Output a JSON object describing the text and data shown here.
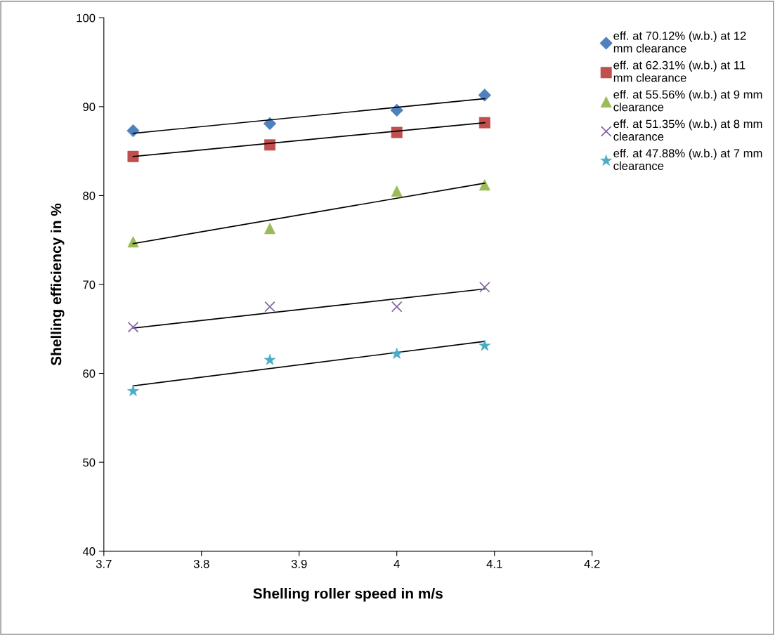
{
  "chart_data": {
    "type": "scatter",
    "xlabel": "Shelling roller speed in m/s",
    "ylabel": "Shelling efficiency in %",
    "xlim": [
      3.7,
      4.2
    ],
    "xticks": [
      3.7,
      3.8,
      3.9,
      4,
      4.1,
      4.2
    ],
    "ylim": [
      40,
      100
    ],
    "yticks": [
      40,
      50,
      60,
      70,
      80,
      90,
      100
    ],
    "grid": false,
    "legend": "top right",
    "series": [
      {
        "name": "eff. at 70.12% (w.b.) at 12\nmm clearance",
        "color": "#4f81bd",
        "marker": "diamond",
        "x": [
          3.73,
          3.87,
          4.0,
          4.09
        ],
        "values": [
          87.3,
          88.1,
          89.6,
          91.3
        ]
      },
      {
        "name": "eff. at 62.31% (w.b.) at 11\nmm clearance",
        "color": "#c0504d",
        "marker": "square",
        "x": [
          3.73,
          3.87,
          4.0,
          4.09
        ],
        "values": [
          84.4,
          85.7,
          87.1,
          88.2
        ]
      },
      {
        "name": "eff. at 55.56% (w.b.) at 9 mm\nclearance",
        "color": "#9bbb59",
        "marker": "triangle",
        "x": [
          3.73,
          3.87,
          4.0,
          4.09
        ],
        "values": [
          74.8,
          76.3,
          80.5,
          81.2
        ]
      },
      {
        "name": "eff. at 51.35% (w.b.) at 8 mm\nclearance",
        "color": "#8064a2",
        "marker": "cross",
        "x": [
          3.73,
          3.87,
          4.0,
          4.09
        ],
        "values": [
          65.2,
          67.5,
          67.5,
          69.7
        ]
      },
      {
        "name": "eff. at 47.88% (w.b.) at 7 mm\nclearance",
        "color": "#4bacc6",
        "marker": "star",
        "x": [
          3.73,
          3.87,
          4.0,
          4.09
        ],
        "values": [
          58.0,
          61.5,
          62.2,
          63.1
        ]
      },
      {
        "type": "line",
        "color": "#000000",
        "x": [
          3.73,
          4.09
        ],
        "values": [
          87.0,
          90.9
        ]
      },
      {
        "type": "line",
        "color": "#000000",
        "x": [
          3.73,
          4.09
        ],
        "values": [
          84.4,
          88.2
        ]
      },
      {
        "type": "line",
        "color": "#000000",
        "x": [
          3.73,
          4.09
        ],
        "values": [
          74.6,
          81.4
        ]
      },
      {
        "type": "line",
        "color": "#000000",
        "x": [
          3.73,
          4.09
        ],
        "values": [
          65.1,
          69.5
        ]
      },
      {
        "type": "line",
        "color": "#000000",
        "x": [
          3.73,
          4.09
        ],
        "values": [
          58.6,
          63.6
        ]
      }
    ]
  }
}
